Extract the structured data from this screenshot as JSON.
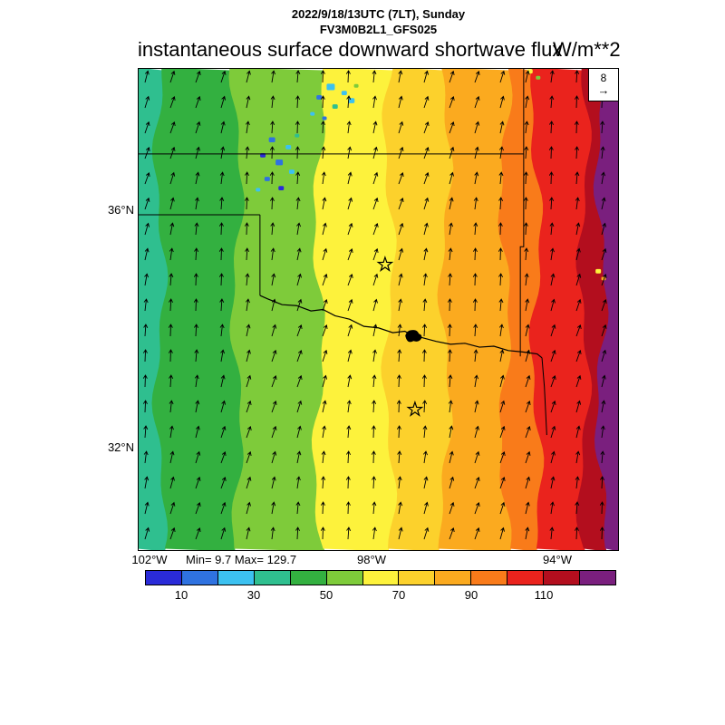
{
  "chart_data": {
    "type": "heatmap",
    "model_run": "2022/9/18/13UTC (7LT), Sunday",
    "model_id": "FV3M0B2L1_GFS025",
    "title": "instantaneous surface downward shortwave flux",
    "units": "W/m**2",
    "stats_label": "Min= 9.7 Max= 129.7",
    "min": 9.7,
    "max": 129.7,
    "wind_reference": "8",
    "x_axis": {
      "ticks": [
        "102°W",
        "98°W",
        "94°W"
      ]
    },
    "y_axis": {
      "ticks": [
        "36°N",
        "32°N"
      ]
    },
    "colorbar": {
      "tick_labels": [
        "10",
        "30",
        "50",
        "70",
        "90",
        "110"
      ],
      "segment_bounds": [
        0,
        10,
        20,
        30,
        40,
        50,
        60,
        70,
        80,
        90,
        100,
        110,
        120,
        130
      ],
      "segment_colors": [
        "#2a2bd8",
        "#2f72e0",
        "#3cc1f0",
        "#2fbf8f",
        "#33b040",
        "#7ecb3a",
        "#fdf23c",
        "#fcd12c",
        "#fbaa1f",
        "#f97b1a",
        "#ea231d",
        "#b30e1e",
        "#7a1f7e"
      ]
    },
    "map_bands": {
      "boundaries": [
        0,
        0.047,
        0.207,
        0.377,
        0.523,
        0.64,
        0.764,
        0.829,
        0.928,
        0.964,
        1
      ],
      "colors": [
        "#2fbf8f",
        "#33b040",
        "#7ecb3a",
        "#fdf23c",
        "#fcd12c",
        "#fbaa1f",
        "#f97b1a",
        "#ea231d",
        "#b30e1e",
        "#7a1f7e"
      ],
      "values": [
        "30-40",
        "40-50",
        "50-60",
        "60-70",
        "70-80",
        "80-90",
        "90-100",
        "100-110",
        "110-120",
        ">120"
      ]
    },
    "borders": {
      "kansas_south": [
        [
          0,
          0.178
        ],
        [
          0.802,
          0.178
        ]
      ],
      "northeast_vertical": [
        [
          0.802,
          0
        ],
        [
          0.802,
          0.178
        ]
      ],
      "oklahoma_east": [
        [
          0.802,
          0.178
        ],
        [
          0.802,
          0.37
        ],
        [
          0.795,
          0.37
        ],
        [
          0.795,
          0.597
        ]
      ],
      "panhandle_south": [
        [
          0,
          0.304
        ],
        [
          0.254,
          0.304
        ]
      ],
      "texas_oklahoma_100w": [
        [
          0.254,
          0.304
        ],
        [
          0.254,
          0.471
        ]
      ],
      "texas_east": [
        [
          0.84,
          0.6
        ],
        [
          0.845,
          0.66
        ],
        [
          0.85,
          0.76
        ]
      ]
    },
    "river": [
      [
        0.254,
        0.471
      ],
      [
        0.27,
        0.478
      ],
      [
        0.3,
        0.49
      ],
      [
        0.33,
        0.492
      ],
      [
        0.36,
        0.503
      ],
      [
        0.385,
        0.5
      ],
      [
        0.41,
        0.513
      ],
      [
        0.44,
        0.52
      ],
      [
        0.47,
        0.535
      ],
      [
        0.5,
        0.538
      ],
      [
        0.53,
        0.548
      ],
      [
        0.555,
        0.545
      ],
      [
        0.571,
        0.554
      ],
      [
        0.59,
        0.558
      ],
      [
        0.62,
        0.566
      ],
      [
        0.65,
        0.572
      ],
      [
        0.68,
        0.57
      ],
      [
        0.71,
        0.578
      ],
      [
        0.74,
        0.576
      ],
      [
        0.77,
        0.585
      ],
      [
        0.8,
        0.588
      ],
      [
        0.83,
        0.592
      ],
      [
        0.84,
        0.6
      ]
    ],
    "lake": {
      "x": 0.571,
      "y": 0.554
    },
    "stars": [
      {
        "x": 0.514,
        "y": 0.407
      },
      {
        "x": 0.576,
        "y": 0.707
      }
    ],
    "speckles": [
      {
        "x": 0.401,
        "y": 0.041,
        "s": 9,
        "c": "#3cc1f0"
      },
      {
        "x": 0.429,
        "y": 0.053,
        "s": 6,
        "c": "#3cc1f0"
      },
      {
        "x": 0.377,
        "y": 0.062,
        "s": 6,
        "c": "#2f72e0"
      },
      {
        "x": 0.444,
        "y": 0.069,
        "s": 7,
        "c": "#3cc1f0"
      },
      {
        "x": 0.41,
        "y": 0.081,
        "s": 6,
        "c": "#2fbf8f"
      },
      {
        "x": 0.363,
        "y": 0.096,
        "s": 5,
        "c": "#3cc1f0"
      },
      {
        "x": 0.454,
        "y": 0.038,
        "s": 5,
        "c": "#7ecb3a"
      },
      {
        "x": 0.388,
        "y": 0.105,
        "s": 5,
        "c": "#2f72e0"
      },
      {
        "x": 0.279,
        "y": 0.15,
        "s": 7,
        "c": "#2f72e0"
      },
      {
        "x": 0.313,
        "y": 0.165,
        "s": 6,
        "c": "#3cc1f0"
      },
      {
        "x": 0.26,
        "y": 0.182,
        "s": 6,
        "c": "#2a2bd8"
      },
      {
        "x": 0.294,
        "y": 0.197,
        "s": 8,
        "c": "#2f72e0"
      },
      {
        "x": 0.32,
        "y": 0.216,
        "s": 6,
        "c": "#3cc1f0"
      },
      {
        "x": 0.269,
        "y": 0.231,
        "s": 6,
        "c": "#2f72e0"
      },
      {
        "x": 0.298,
        "y": 0.25,
        "s": 6,
        "c": "#2a2bd8"
      },
      {
        "x": 0.25,
        "y": 0.253,
        "s": 5,
        "c": "#3cc1f0"
      },
      {
        "x": 0.331,
        "y": 0.141,
        "s": 5,
        "c": "#2fbf8f"
      },
      {
        "x": 0.815,
        "y": 0.008,
        "s": 6,
        "c": "#fdf23c"
      },
      {
        "x": 0.832,
        "y": 0.021,
        "s": 5,
        "c": "#7ecb3a"
      },
      {
        "x": 0.957,
        "y": 0.422,
        "s": 6,
        "c": "#fdf23c"
      },
      {
        "x": 0.968,
        "y": 0.437,
        "s": 5,
        "c": "#fbaa1f"
      }
    ],
    "wind": {
      "spacing": 28,
      "length": 13
    }
  }
}
